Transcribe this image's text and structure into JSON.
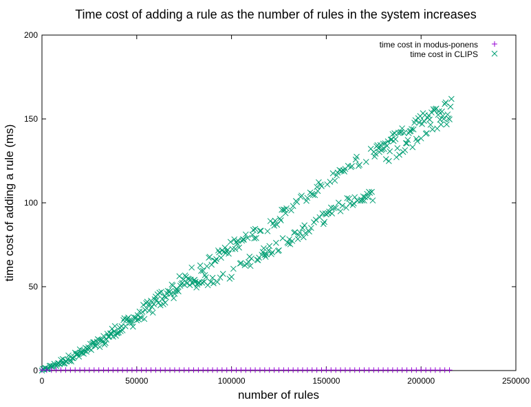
{
  "chart_data": {
    "type": "scatter",
    "title": "Time cost of adding a rule as the number of rules in the system increases",
    "xlabel": "number of rules",
    "ylabel": "time cost of adding a rule (ms)",
    "xlim": [
      0,
      250000
    ],
    "ylim": [
      0,
      200
    ],
    "xticks": [
      0,
      50000,
      100000,
      150000,
      200000,
      250000
    ],
    "yticks": [
      0,
      50,
      100,
      150,
      200
    ],
    "grid": false,
    "legend_position": "top-right",
    "series": [
      {
        "name": "time cost in modus-ponens",
        "marker": "plus",
        "color": "#9400d3",
        "x_start": 0,
        "x_end": 215000,
        "x_step": 2500,
        "y_constant": 0.3
      },
      {
        "name": "time cost in CLIPS",
        "marker": "cross",
        "color": "#009e73",
        "x_start": 0,
        "x_end": 216000,
        "x_step": 500,
        "y_constant": null,
        "trend": {
          "upper": [
            [
              0,
              0
            ],
            [
              25000,
              13
            ],
            [
              50000,
              33
            ],
            [
              75000,
              55
            ],
            [
              100000,
              74
            ],
            [
              120000,
              87
            ],
            [
              140000,
              104
            ],
            [
              160000,
              120
            ],
            [
              180000,
              134
            ],
            [
              200000,
              150
            ],
            [
              216000,
              160
            ]
          ],
          "lower": [
            [
              0,
              0
            ],
            [
              25000,
              12
            ],
            [
              50000,
              31
            ],
            [
              75000,
              50
            ],
            [
              100000,
              58
            ],
            [
              120000,
              72
            ],
            [
              140000,
              84
            ],
            [
              160000,
              100
            ],
            [
              175000,
              105
            ],
            [
              180000,
              125
            ],
            [
              200000,
              140
            ],
            [
              216000,
              152
            ]
          ]
        },
        "noise": 3.5
      }
    ]
  }
}
